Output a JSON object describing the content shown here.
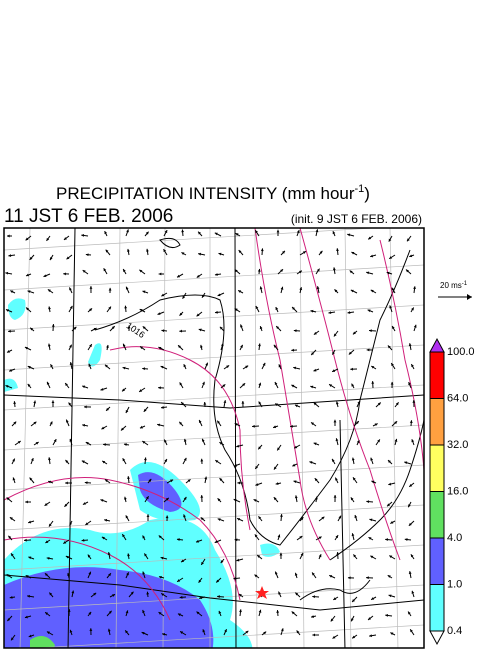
{
  "header": {
    "title": "PRECIPITATION INTENSITY (mm hour",
    "title_exponent": "-1",
    "title_close": ")",
    "valid_time": "11 JST 6 FEB. 2006",
    "init_time": "(init. 9 JST 6 FEB. 2006)"
  },
  "wind_scale": {
    "label": "20 ms",
    "exponent": "-1"
  },
  "colorbar": {
    "labels": [
      "100.0",
      "64.0",
      "32.0",
      "16.0",
      "4.0",
      "1.0",
      "0.4"
    ],
    "over_color": "#b030f0",
    "under_color": "#ffffff",
    "colors": [
      "#ff0000",
      "#ffa040",
      "#ffff60",
      "#60e060",
      "#6060ff",
      "#60ffff"
    ]
  },
  "map": {
    "contour_label": "1016"
  }
}
